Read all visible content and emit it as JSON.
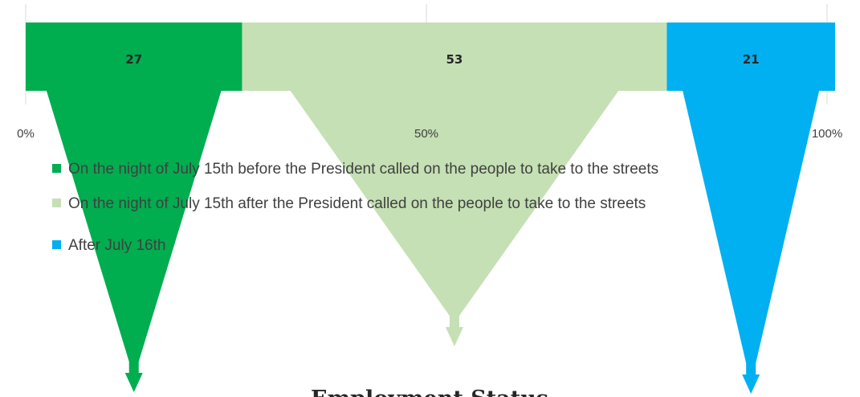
{
  "chart_data": {
    "type": "bar",
    "orientation": "horizontal-stacked-100",
    "axis": {
      "xlim": [
        0,
        100
      ],
      "ticks": [
        0,
        50,
        100
      ],
      "tick_labels": [
        "0%",
        "50%",
        "100%"
      ],
      "gridlines": true
    },
    "series": [
      {
        "name": "On the night of July 15th before the President called on the people to take to the streets",
        "value": 27,
        "label": "27",
        "color": "#00ad4f"
      },
      {
        "name": "On the night of July 15th after the President called on the people to take to the streets",
        "value": 53,
        "label": "53",
        "color": "#c5e0b4"
      },
      {
        "name": "After July 16th",
        "value": 21,
        "label": "21",
        "color": "#00b0f0"
      }
    ],
    "legend_position": "below-axis",
    "caption": "Employment Status"
  }
}
